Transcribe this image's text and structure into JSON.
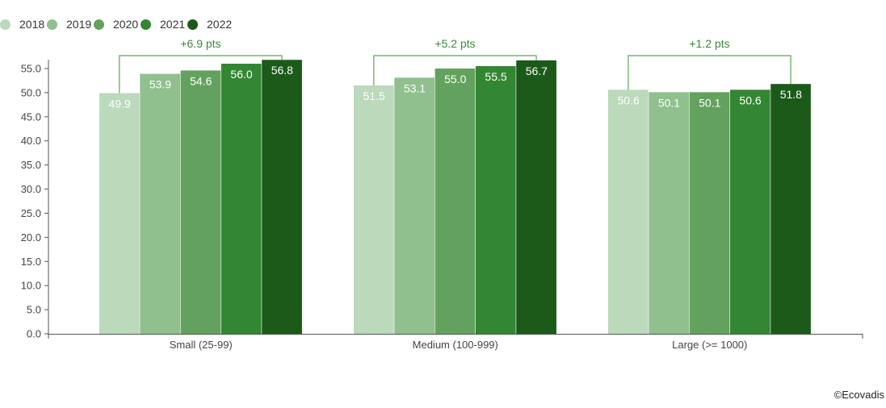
{
  "chart_data": {
    "type": "bar",
    "categories": [
      "Small (25-99)",
      "Medium (100-999)",
      "Large (>= 1000)"
    ],
    "series": [
      {
        "name": "2018",
        "color": "#bbd9bb",
        "values": [
          49.9,
          51.5,
          50.6
        ]
      },
      {
        "name": "2019",
        "color": "#90c08e",
        "values": [
          53.9,
          53.1,
          50.1
        ]
      },
      {
        "name": "2020",
        "color": "#63a25e",
        "values": [
          54.6,
          55.0,
          50.1
        ]
      },
      {
        "name": "2021",
        "color": "#338733",
        "values": [
          56.0,
          55.5,
          50.6
        ]
      },
      {
        "name": "2022",
        "color": "#1c5a1a",
        "values": [
          56.8,
          56.7,
          51.8
        ]
      }
    ],
    "data_labels": [
      [
        "49.9",
        "53.9",
        "54.6",
        "56.0",
        "56.8"
      ],
      [
        "51.5",
        "53.1",
        "55.0",
        "55.5",
        "56.7"
      ],
      [
        "50.6",
        "50.1",
        "50.1",
        "50.6",
        "51.8"
      ]
    ],
    "annotations": [
      "+6.9 pts",
      "+5.2 pts",
      "+1.2 pts"
    ],
    "ylim": [
      0,
      57.5
    ],
    "yticks": [
      "0.0",
      "5.0",
      "10.0",
      "15.0",
      "20.0",
      "25.0",
      "30.0",
      "35.0",
      "40.0",
      "45.0",
      "50.0",
      "55.0"
    ],
    "ytick_values": [
      0,
      5,
      10,
      15,
      20,
      25,
      30,
      35,
      40,
      45,
      50,
      55
    ],
    "legend_position": "top-left",
    "grid": false,
    "bracket_color": "#5aa55a",
    "axis_color": "#555555"
  },
  "credit": "©Ecovadis"
}
